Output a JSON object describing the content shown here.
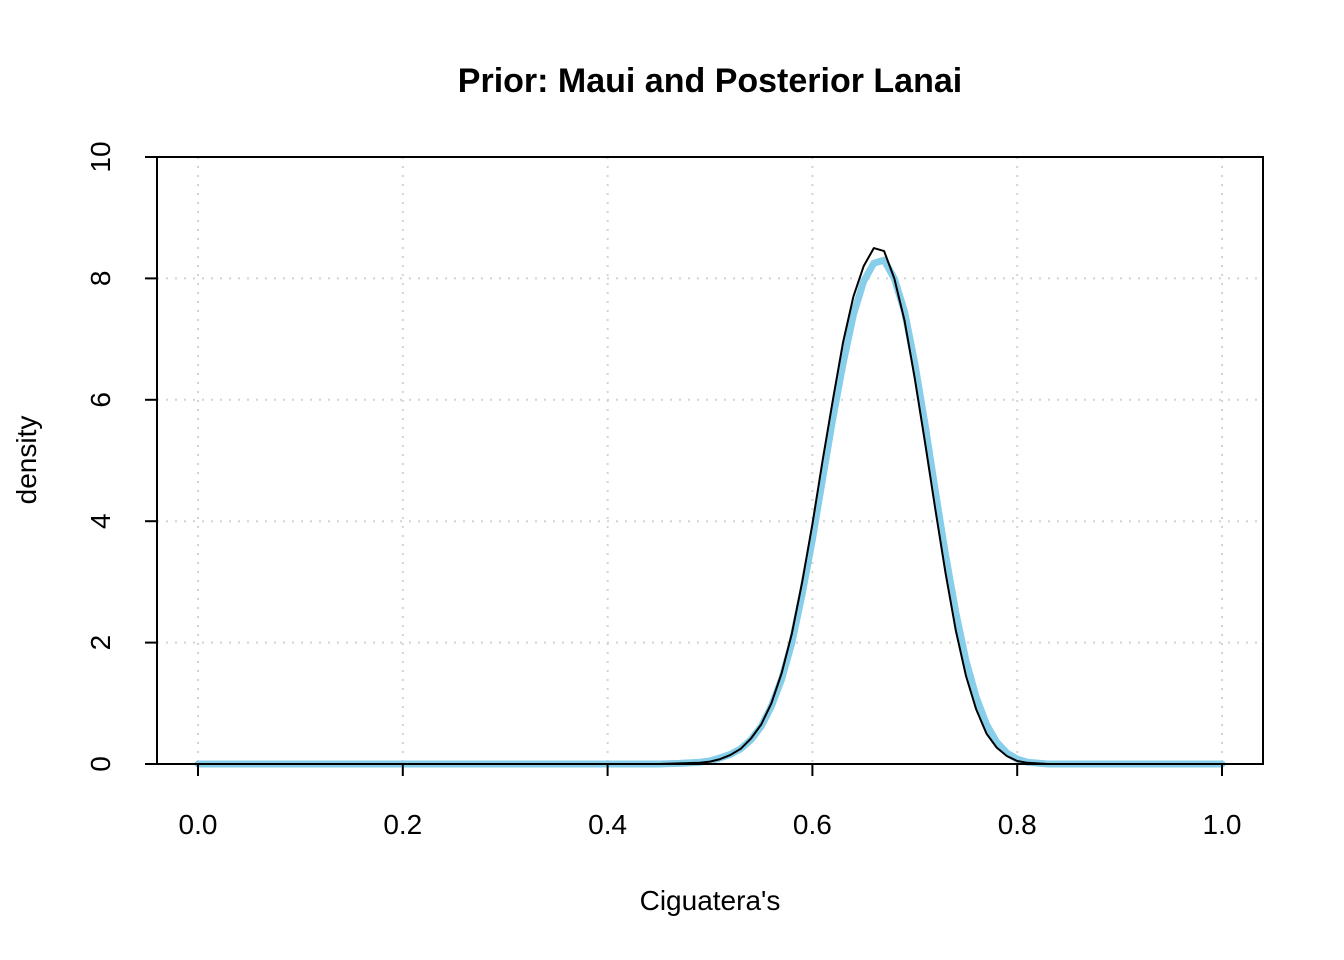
{
  "chart_data": {
    "type": "line",
    "title": "Prior: Maui and Posterior Lanai",
    "xlabel": "Ciguatera's",
    "ylabel": "density",
    "xlim": [
      0.0,
      1.0
    ],
    "ylim": [
      0,
      10
    ],
    "x_ticks": [
      "0.0",
      "0.2",
      "0.4",
      "0.6",
      "0.8",
      "1.0"
    ],
    "y_ticks": [
      "0",
      "2",
      "4",
      "6",
      "8",
      "10"
    ],
    "grid": true,
    "legend": "none",
    "series": [
      {
        "color": "#87ceeb",
        "points": [
          [
            0.0,
            0
          ],
          [
            0.45,
            0
          ],
          [
            0.47,
            0.01
          ],
          [
            0.49,
            0.03
          ],
          [
            0.5,
            0.05
          ],
          [
            0.51,
            0.1
          ],
          [
            0.52,
            0.16
          ],
          [
            0.53,
            0.25
          ],
          [
            0.54,
            0.4
          ],
          [
            0.55,
            0.62
          ],
          [
            0.56,
            0.95
          ],
          [
            0.57,
            1.4
          ],
          [
            0.58,
            2.0
          ],
          [
            0.59,
            2.8
          ],
          [
            0.6,
            3.7
          ],
          [
            0.61,
            4.7
          ],
          [
            0.62,
            5.7
          ],
          [
            0.63,
            6.6
          ],
          [
            0.64,
            7.4
          ],
          [
            0.65,
            7.95
          ],
          [
            0.66,
            8.25
          ],
          [
            0.67,
            8.3
          ],
          [
            0.68,
            8.0
          ],
          [
            0.69,
            7.45
          ],
          [
            0.7,
            6.6
          ],
          [
            0.71,
            5.6
          ],
          [
            0.72,
            4.5
          ],
          [
            0.73,
            3.45
          ],
          [
            0.74,
            2.5
          ],
          [
            0.75,
            1.7
          ],
          [
            0.76,
            1.1
          ],
          [
            0.77,
            0.65
          ],
          [
            0.78,
            0.36
          ],
          [
            0.79,
            0.18
          ],
          [
            0.8,
            0.08
          ],
          [
            0.81,
            0.03
          ],
          [
            0.83,
            0.0
          ],
          [
            1.0,
            0
          ]
        ]
      },
      {
        "color": "#000000",
        "points": [
          [
            0.0,
            0
          ],
          [
            0.45,
            0
          ],
          [
            0.47,
            0.01
          ],
          [
            0.49,
            0.02
          ],
          [
            0.5,
            0.04
          ],
          [
            0.51,
            0.08
          ],
          [
            0.52,
            0.15
          ],
          [
            0.53,
            0.25
          ],
          [
            0.54,
            0.42
          ],
          [
            0.55,
            0.65
          ],
          [
            0.56,
            1.0
          ],
          [
            0.57,
            1.5
          ],
          [
            0.58,
            2.15
          ],
          [
            0.59,
            3.0
          ],
          [
            0.6,
            3.95
          ],
          [
            0.61,
            5.0
          ],
          [
            0.62,
            6.0
          ],
          [
            0.63,
            6.95
          ],
          [
            0.64,
            7.7
          ],
          [
            0.65,
            8.2
          ],
          [
            0.66,
            8.5
          ],
          [
            0.67,
            8.45
          ],
          [
            0.68,
            8.0
          ],
          [
            0.69,
            7.3
          ],
          [
            0.7,
            6.35
          ],
          [
            0.71,
            5.3
          ],
          [
            0.72,
            4.2
          ],
          [
            0.73,
            3.15
          ],
          [
            0.74,
            2.2
          ],
          [
            0.75,
            1.45
          ],
          [
            0.76,
            0.9
          ],
          [
            0.77,
            0.5
          ],
          [
            0.78,
            0.27
          ],
          [
            0.79,
            0.13
          ],
          [
            0.8,
            0.05
          ],
          [
            0.81,
            0.02
          ],
          [
            0.83,
            0.0
          ],
          [
            1.0,
            0
          ]
        ]
      }
    ]
  }
}
